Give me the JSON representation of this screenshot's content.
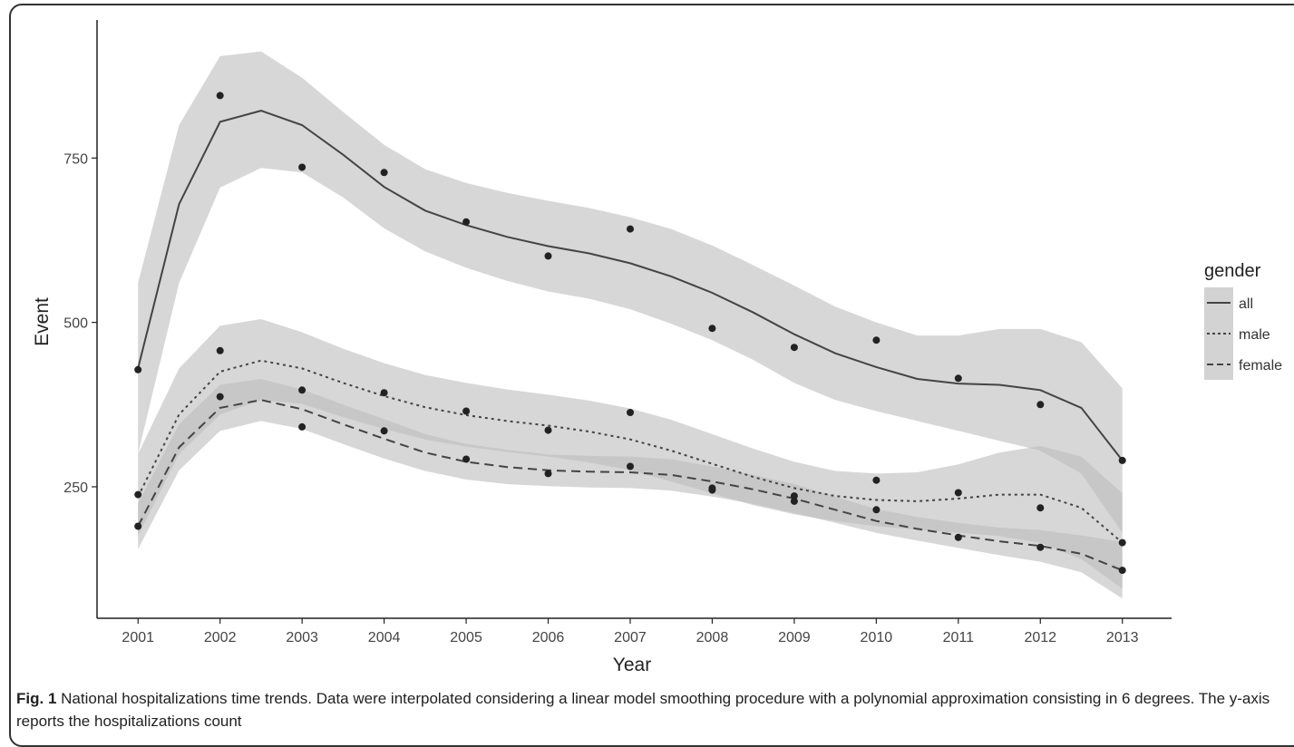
{
  "caption": {
    "label": "Fig. 1",
    "text": "National hospitalizations time trends. Data were interpolated considering a linear model smoothing procedure with a polynomial approximation consisting in 6 degrees. The y-axis reports the hospitalizations count"
  },
  "chart_data": {
    "type": "line",
    "title": "",
    "xlabel": "Year",
    "ylabel": "Event",
    "x": [
      2001,
      2002,
      2003,
      2004,
      2005,
      2006,
      2007,
      2008,
      2009,
      2010,
      2011,
      2012,
      2013
    ],
    "xlim": [
      2000.5,
      2013.6
    ],
    "ylim": [
      50,
      960
    ],
    "y_ticks": [
      250,
      500,
      750
    ],
    "grid": false,
    "legend": {
      "title": "gender",
      "position": "right"
    },
    "band_color": "#bdbdbd",
    "line_color": "#444444",
    "point_color": "#222222",
    "series": [
      {
        "name": "all",
        "line_style": "solid",
        "points": [
          428,
          845,
          736,
          728,
          653,
          601,
          642,
          491,
          462,
          473,
          415,
          375,
          290
        ],
        "fit": [
          [
            2001,
            430
          ],
          [
            2001.5,
            680
          ],
          [
            2002,
            805
          ],
          [
            2002.5,
            822
          ],
          [
            2003,
            800
          ],
          [
            2003.5,
            755
          ],
          [
            2004,
            706
          ],
          [
            2004.5,
            670
          ],
          [
            2005,
            648
          ],
          [
            2005.5,
            630
          ],
          [
            2006,
            616
          ],
          [
            2006.5,
            605
          ],
          [
            2007,
            590
          ],
          [
            2007.5,
            570
          ],
          [
            2008,
            545
          ],
          [
            2008.5,
            515
          ],
          [
            2009,
            482
          ],
          [
            2009.5,
            453
          ],
          [
            2010,
            432
          ],
          [
            2010.5,
            414
          ],
          [
            2011,
            407
          ],
          [
            2011.5,
            405
          ],
          [
            2012,
            397
          ],
          [
            2012.5,
            370
          ],
          [
            2013,
            290
          ]
        ],
        "ci_lower": [
          [
            2001,
            300
          ],
          [
            2001.5,
            560
          ],
          [
            2002,
            705
          ],
          [
            2002.5,
            735
          ],
          [
            2003,
            728
          ],
          [
            2003.5,
            690
          ],
          [
            2004,
            643
          ],
          [
            2004.5,
            608
          ],
          [
            2005,
            583
          ],
          [
            2005.5,
            563
          ],
          [
            2006,
            547
          ],
          [
            2006.5,
            536
          ],
          [
            2007,
            520
          ],
          [
            2007.5,
            498
          ],
          [
            2008,
            473
          ],
          [
            2008.5,
            443
          ],
          [
            2009,
            408
          ],
          [
            2009.5,
            382
          ],
          [
            2010,
            365
          ],
          [
            2010.5,
            350
          ],
          [
            2011,
            335
          ],
          [
            2011.5,
            320
          ],
          [
            2012,
            305
          ],
          [
            2012.5,
            270
          ],
          [
            2013,
            180
          ]
        ],
        "ci_upper": [
          [
            2001,
            560
          ],
          [
            2001.5,
            800
          ],
          [
            2002,
            905
          ],
          [
            2002.5,
            912
          ],
          [
            2003,
            872
          ],
          [
            2003.5,
            820
          ],
          [
            2004,
            770
          ],
          [
            2004.5,
            733
          ],
          [
            2005,
            712
          ],
          [
            2005.5,
            697
          ],
          [
            2006,
            685
          ],
          [
            2006.5,
            674
          ],
          [
            2007,
            660
          ],
          [
            2007.5,
            642
          ],
          [
            2008,
            617
          ],
          [
            2008.5,
            587
          ],
          [
            2009,
            556
          ],
          [
            2009.5,
            524
          ],
          [
            2010,
            500
          ],
          [
            2010.5,
            480
          ],
          [
            2011,
            480
          ],
          [
            2011.5,
            490
          ],
          [
            2012,
            490
          ],
          [
            2012.5,
            470
          ],
          [
            2013,
            400
          ]
        ]
      },
      {
        "name": "male",
        "line_style": "dotted",
        "points": [
          238,
          457,
          397,
          393,
          365,
          336,
          363,
          248,
          236,
          260,
          241,
          218,
          165
        ],
        "fit": [
          [
            2001,
            235
          ],
          [
            2001.5,
            360
          ],
          [
            2002,
            425
          ],
          [
            2002.5,
            442
          ],
          [
            2003,
            430
          ],
          [
            2003.5,
            408
          ],
          [
            2004,
            388
          ],
          [
            2004.5,
            371
          ],
          [
            2005,
            359
          ],
          [
            2005.5,
            350
          ],
          [
            2006,
            343
          ],
          [
            2006.5,
            334
          ],
          [
            2007,
            322
          ],
          [
            2007.5,
            305
          ],
          [
            2008,
            285
          ],
          [
            2008.5,
            265
          ],
          [
            2009,
            248
          ],
          [
            2009.5,
            236
          ],
          [
            2010,
            230
          ],
          [
            2010.5,
            228
          ],
          [
            2011,
            232
          ],
          [
            2011.5,
            238
          ],
          [
            2012,
            238
          ],
          [
            2012.5,
            218
          ],
          [
            2013,
            165
          ]
        ],
        "ci_lower": [
          [
            2001,
            175
          ],
          [
            2001.5,
            300
          ],
          [
            2002,
            360
          ],
          [
            2002.5,
            382
          ],
          [
            2003,
            376
          ],
          [
            2003.5,
            356
          ],
          [
            2004,
            338
          ],
          [
            2004.5,
            322
          ],
          [
            2005,
            311
          ],
          [
            2005.5,
            303
          ],
          [
            2006,
            296
          ],
          [
            2006.5,
            287
          ],
          [
            2007,
            275
          ],
          [
            2007.5,
            258
          ],
          [
            2008,
            240
          ],
          [
            2008.5,
            222
          ],
          [
            2009,
            208
          ],
          [
            2009.5,
            198
          ],
          [
            2010,
            190
          ],
          [
            2010.5,
            185
          ],
          [
            2011,
            180
          ],
          [
            2011.5,
            175
          ],
          [
            2012,
            165
          ],
          [
            2012.5,
            140
          ],
          [
            2013,
            95
          ]
        ],
        "ci_upper": [
          [
            2001,
            300
          ],
          [
            2001.5,
            430
          ],
          [
            2002,
            495
          ],
          [
            2002.5,
            505
          ],
          [
            2003,
            485
          ],
          [
            2003.5,
            460
          ],
          [
            2004,
            438
          ],
          [
            2004.5,
            420
          ],
          [
            2005,
            408
          ],
          [
            2005.5,
            398
          ],
          [
            2006,
            390
          ],
          [
            2006.5,
            381
          ],
          [
            2007,
            369
          ],
          [
            2007.5,
            352
          ],
          [
            2008,
            330
          ],
          [
            2008.5,
            308
          ],
          [
            2009,
            288
          ],
          [
            2009.5,
            274
          ],
          [
            2010,
            270
          ],
          [
            2010.5,
            272
          ],
          [
            2011,
            284
          ],
          [
            2011.5,
            302
          ],
          [
            2012,
            312
          ],
          [
            2012.5,
            296
          ],
          [
            2013,
            240
          ]
        ]
      },
      {
        "name": "female",
        "line_style": "dashed",
        "points": [
          190,
          387,
          341,
          335,
          292,
          270,
          281,
          245,
          228,
          215,
          173,
          158,
          123
        ],
        "fit": [
          [
            2001,
            190
          ],
          [
            2001.5,
            310
          ],
          [
            2002,
            370
          ],
          [
            2002.5,
            382
          ],
          [
            2003,
            368
          ],
          [
            2003.5,
            345
          ],
          [
            2004,
            323
          ],
          [
            2004.5,
            302
          ],
          [
            2005,
            288
          ],
          [
            2005.5,
            280
          ],
          [
            2006,
            275
          ],
          [
            2006.5,
            273
          ],
          [
            2007,
            272
          ],
          [
            2007.5,
            268
          ],
          [
            2008,
            258
          ],
          [
            2008.5,
            246
          ],
          [
            2009,
            232
          ],
          [
            2009.5,
            215
          ],
          [
            2010,
            198
          ],
          [
            2010.5,
            186
          ],
          [
            2011,
            176
          ],
          [
            2011.5,
            167
          ],
          [
            2012,
            160
          ],
          [
            2012.5,
            148
          ],
          [
            2013,
            123
          ]
        ],
        "ci_lower": [
          [
            2001,
            155
          ],
          [
            2001.5,
            275
          ],
          [
            2002,
            335
          ],
          [
            2002.5,
            350
          ],
          [
            2003,
            338
          ],
          [
            2003.5,
            315
          ],
          [
            2004,
            293
          ],
          [
            2004.5,
            274
          ],
          [
            2005,
            261
          ],
          [
            2005.5,
            254
          ],
          [
            2006,
            251
          ],
          [
            2006.5,
            249
          ],
          [
            2007,
            248
          ],
          [
            2007.5,
            244
          ],
          [
            2008,
            235
          ],
          [
            2008.5,
            224
          ],
          [
            2009,
            210
          ],
          [
            2009.5,
            195
          ],
          [
            2010,
            180
          ],
          [
            2010.5,
            168
          ],
          [
            2011,
            157
          ],
          [
            2011.5,
            146
          ],
          [
            2012,
            136
          ],
          [
            2012.5,
            120
          ],
          [
            2013,
            80
          ]
        ],
        "ci_upper": [
          [
            2001,
            225
          ],
          [
            2001.5,
            345
          ],
          [
            2002,
            405
          ],
          [
            2002.5,
            414
          ],
          [
            2003,
            398
          ],
          [
            2003.5,
            375
          ],
          [
            2004,
            353
          ],
          [
            2004.5,
            330
          ],
          [
            2005,
            315
          ],
          [
            2005.5,
            306
          ],
          [
            2006,
            299
          ],
          [
            2006.5,
            297
          ],
          [
            2007,
            296
          ],
          [
            2007.5,
            292
          ],
          [
            2008,
            281
          ],
          [
            2008.5,
            268
          ],
          [
            2009,
            254
          ],
          [
            2009.5,
            235
          ],
          [
            2010,
            216
          ],
          [
            2010.5,
            204
          ],
          [
            2011,
            195
          ],
          [
            2011.5,
            188
          ],
          [
            2012,
            184
          ],
          [
            2012.5,
            176
          ],
          [
            2013,
            166
          ]
        ]
      }
    ]
  }
}
